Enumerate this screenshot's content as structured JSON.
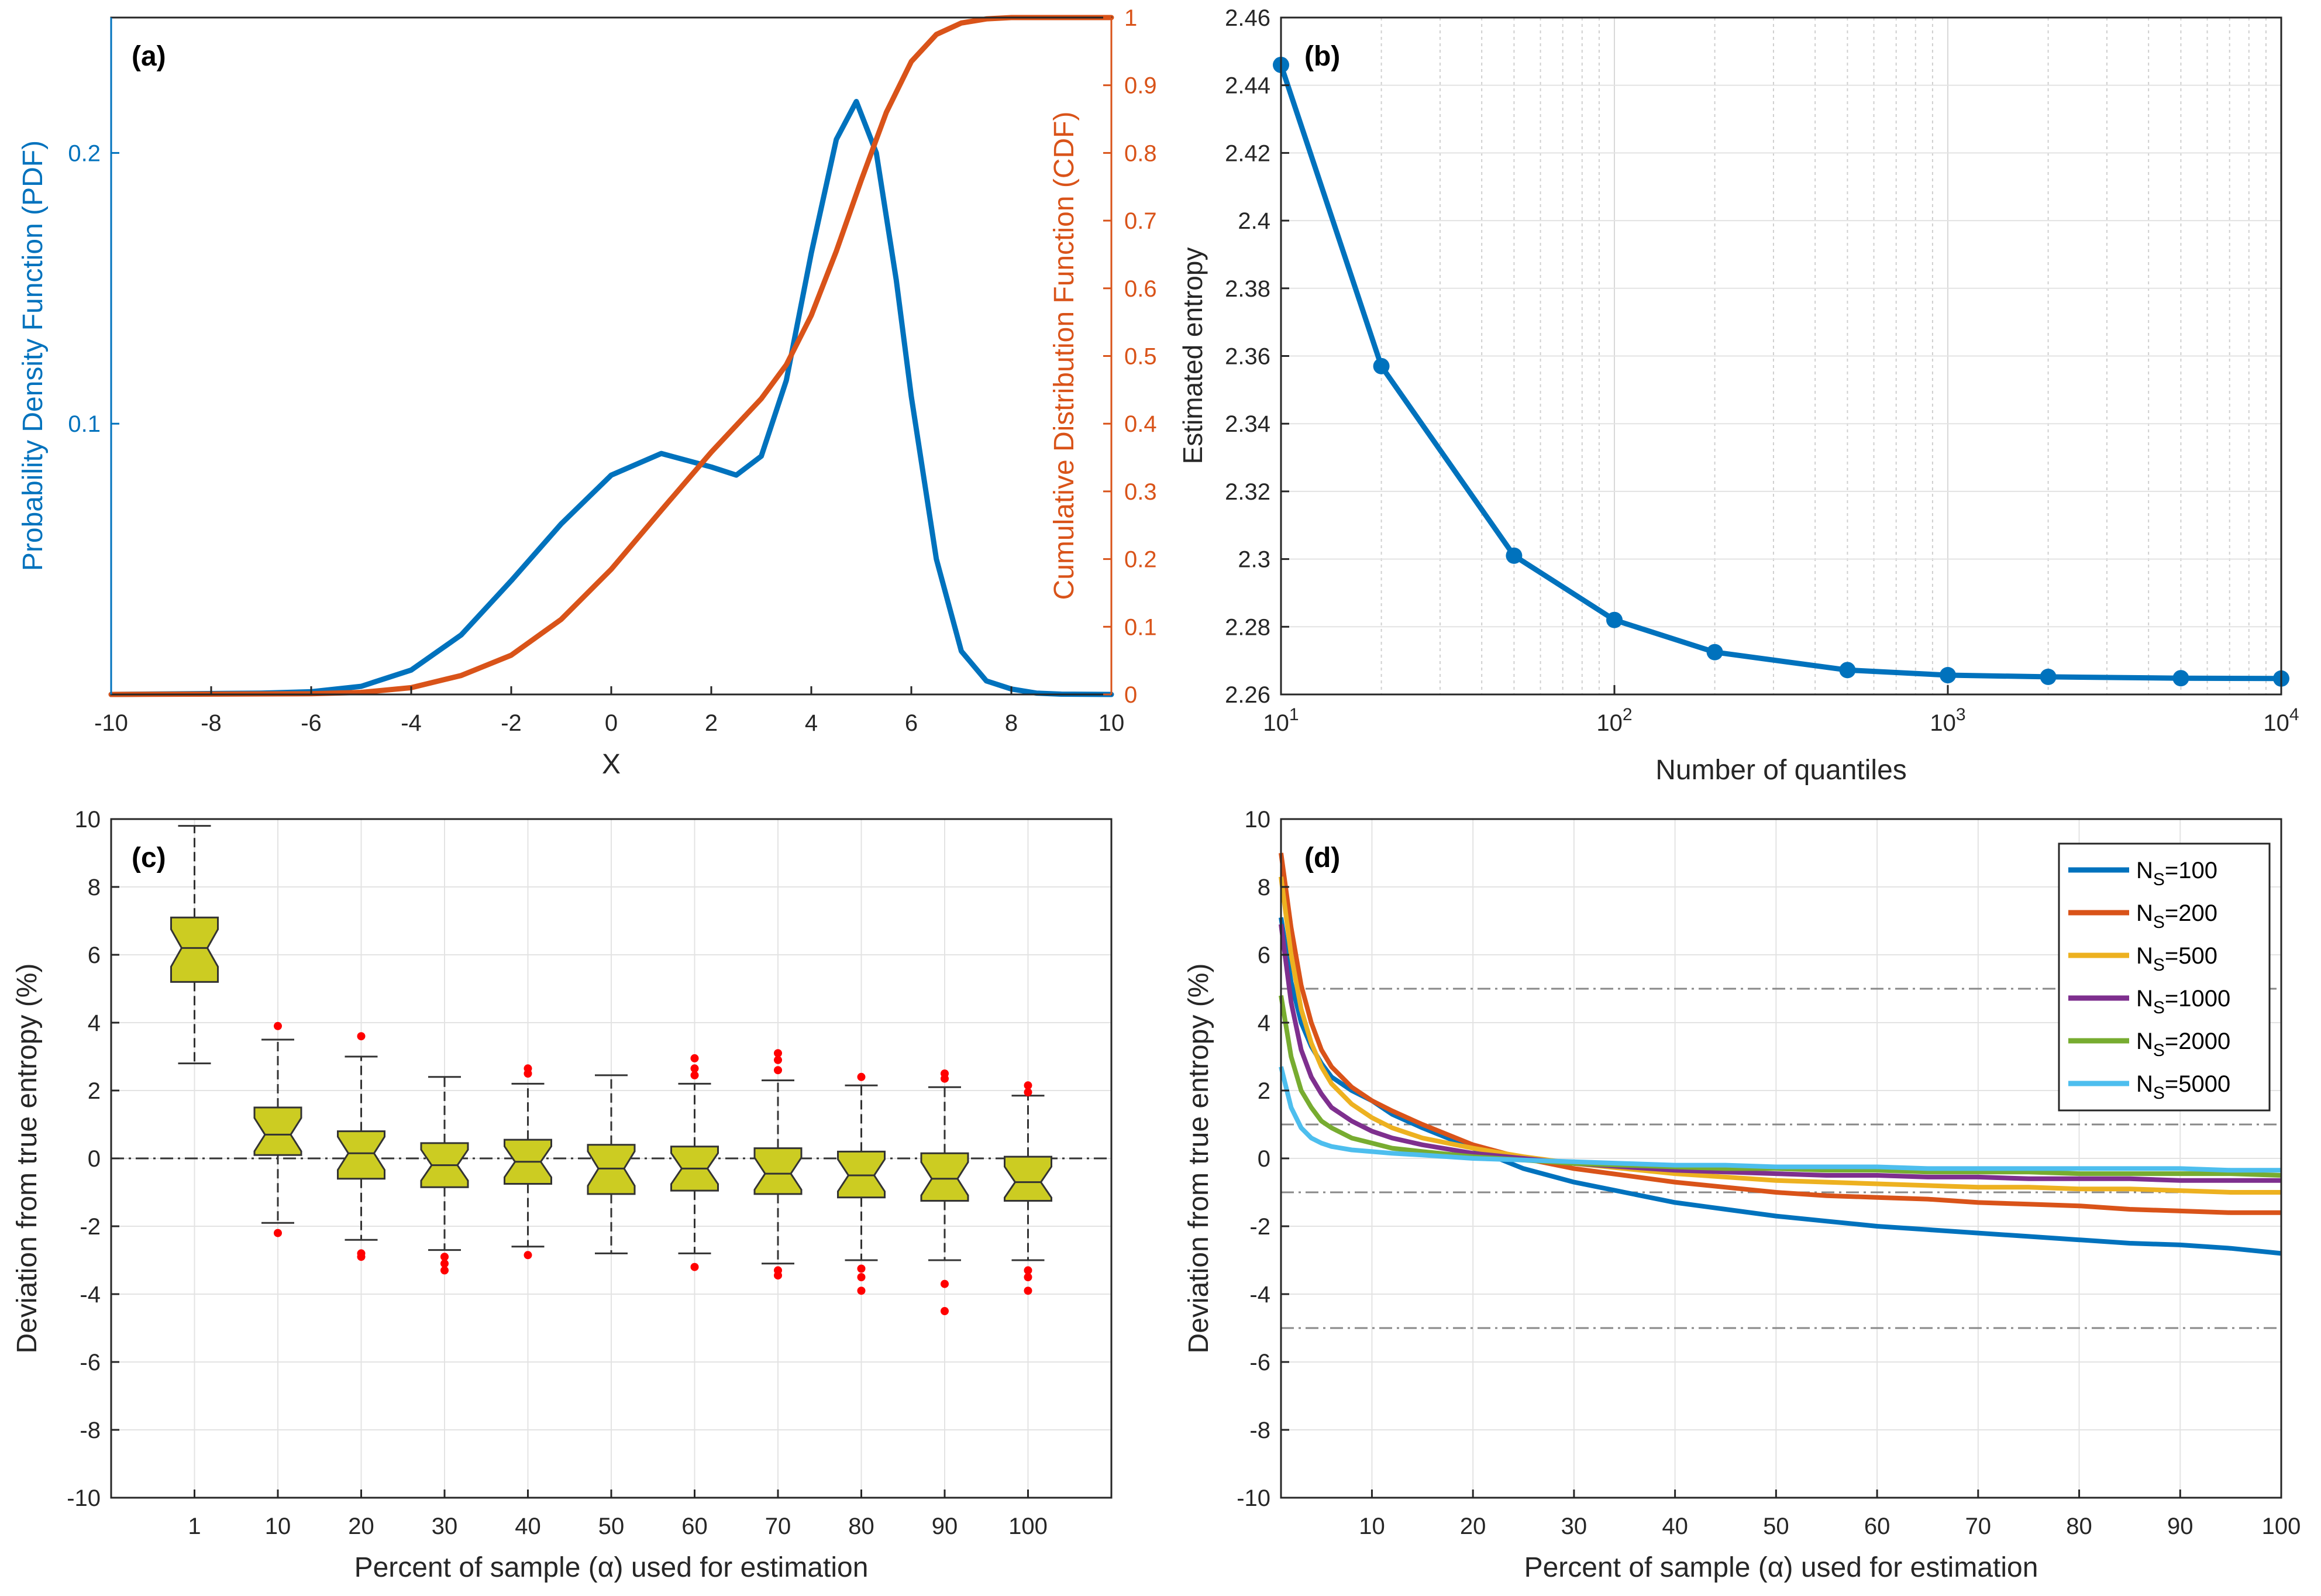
{
  "colors": {
    "pdf": "#0072BD",
    "cdf": "#D95319",
    "line_b": "#0072BD",
    "box_fill": "#CCCC22",
    "outlier": "#FF0000",
    "ref_line": "#888888"
  },
  "chart_data": [
    {
      "panel": "a",
      "type": "line",
      "label": "(a)",
      "xlabel": "X",
      "ylabel_left": "Probability Density Function (PDF)",
      "ylabel_right": "Cumulative Distribution Function (CDF)",
      "xlim": [
        -10,
        10
      ],
      "ylim_left": [
        0,
        0.25
      ],
      "ylim_right": [
        0,
        1
      ],
      "xticks": [
        -10,
        -8,
        -6,
        -4,
        -2,
        0,
        2,
        4,
        6,
        8,
        10
      ],
      "yticks_left": [
        0.1,
        0.2
      ],
      "yticks_right": [
        0,
        0.1,
        0.2,
        0.3,
        0.4,
        0.5,
        0.6,
        0.7,
        0.8,
        0.9,
        1
      ],
      "series": [
        {
          "name": "PDF",
          "axis": "left",
          "x": [
            -10,
            -7,
            -6,
            -5,
            -4,
            -3,
            -2,
            -1,
            0,
            1,
            2,
            2.5,
            3,
            3.5,
            4,
            4.5,
            4.9,
            5.3,
            5.7,
            6,
            6.5,
            7,
            7.5,
            8,
            8.5,
            9,
            10
          ],
          "y": [
            0,
            0.0005,
            0.001,
            0.003,
            0.009,
            0.022,
            0.042,
            0.063,
            0.081,
            0.089,
            0.084,
            0.081,
            0.088,
            0.116,
            0.163,
            0.205,
            0.219,
            0.2,
            0.153,
            0.11,
            0.05,
            0.016,
            0.005,
            0.002,
            0.0005,
            0.0001,
            0
          ]
        },
        {
          "name": "CDF",
          "axis": "right",
          "x": [
            -10,
            -6,
            -5,
            -4,
            -3,
            -2,
            -1,
            0,
            1,
            2,
            3,
            3.5,
            4,
            4.5,
            5,
            5.5,
            6,
            6.5,
            7,
            7.5,
            8,
            10
          ],
          "y": [
            0,
            0.001,
            0.003,
            0.01,
            0.028,
            0.058,
            0.111,
            0.185,
            0.272,
            0.358,
            0.437,
            0.487,
            0.56,
            0.655,
            0.76,
            0.86,
            0.935,
            0.975,
            0.992,
            0.998,
            1.0,
            1.0
          ]
        }
      ]
    },
    {
      "panel": "b",
      "type": "line",
      "label": "(b)",
      "xlabel": "Number of quantiles",
      "ylabel": "Estimated entropy",
      "xscale": "log",
      "xlim": [
        10,
        10000
      ],
      "ylim": [
        2.26,
        2.46
      ],
      "xticks": [
        "10^1",
        "10^2",
        "10^3",
        "10^4"
      ],
      "yticks": [
        2.26,
        2.28,
        2.3,
        2.32,
        2.34,
        2.36,
        2.38,
        2.4,
        2.42,
        2.44,
        2.46
      ],
      "series": [
        {
          "name": "Estimated entropy",
          "x": [
            10,
            20,
            50,
            100,
            200,
            500,
            1000,
            2000,
            5000,
            10000
          ],
          "y": [
            2.446,
            2.357,
            2.301,
            2.282,
            2.2725,
            2.2672,
            2.2657,
            2.2652,
            2.2648,
            2.2647
          ]
        }
      ]
    },
    {
      "panel": "c",
      "type": "box",
      "label": "(c)",
      "xlabel": "Percent of sample (α) used for estimation",
      "ylabel": "Deviation from true entropy (%)",
      "ylim": [
        -10,
        10
      ],
      "yticks": [
        -10,
        -8,
        -6,
        -4,
        -2,
        0,
        2,
        4,
        6,
        8,
        10
      ],
      "categories": [
        "1",
        "10",
        "20",
        "30",
        "40",
        "50",
        "60",
        "70",
        "80",
        "90",
        "100"
      ],
      "boxes": [
        {
          "min": 2.8,
          "q1": 5.2,
          "median": 6.2,
          "q3": 7.1,
          "max": 9.8,
          "outliers": []
        },
        {
          "min": -1.9,
          "q1": 0.1,
          "median": 0.7,
          "q3": 1.5,
          "max": 3.5,
          "outliers": [
            3.9,
            -2.2
          ]
        },
        {
          "min": -2.4,
          "q1": -0.6,
          "median": 0.15,
          "q3": 0.8,
          "max": 3.0,
          "outliers": [
            3.6,
            -2.8,
            -2.9
          ]
        },
        {
          "min": -2.7,
          "q1": -0.85,
          "median": -0.2,
          "q3": 0.45,
          "max": 2.4,
          "outliers": [
            -2.9,
            -3.1,
            -3.3
          ]
        },
        {
          "min": -2.6,
          "q1": -0.75,
          "median": -0.1,
          "q3": 0.55,
          "max": 2.2,
          "outliers": [
            2.5,
            2.65,
            -2.85
          ]
        },
        {
          "min": -2.8,
          "q1": -1.05,
          "median": -0.3,
          "q3": 0.4,
          "max": 2.45,
          "outliers": []
        },
        {
          "min": -2.8,
          "q1": -0.95,
          "median": -0.3,
          "q3": 0.35,
          "max": 2.2,
          "outliers": [
            2.95,
            2.65,
            2.45,
            -3.2
          ]
        },
        {
          "min": -3.1,
          "q1": -1.05,
          "median": -0.45,
          "q3": 0.3,
          "max": 2.3,
          "outliers": [
            3.1,
            2.9,
            2.6,
            -3.3,
            -3.45
          ]
        },
        {
          "min": -3.0,
          "q1": -1.15,
          "median": -0.5,
          "q3": 0.2,
          "max": 2.15,
          "outliers": [
            2.4,
            -3.5,
            -3.9,
            -3.25
          ]
        },
        {
          "min": -3.0,
          "q1": -1.25,
          "median": -0.6,
          "q3": 0.15,
          "max": 2.1,
          "outliers": [
            2.5,
            2.35,
            -3.7,
            -4.5
          ]
        },
        {
          "min": -3.0,
          "q1": -1.25,
          "median": -0.7,
          "q3": 0.05,
          "max": 1.85,
          "outliers": [
            2.15,
            1.95,
            -3.3,
            -3.5,
            -3.9
          ]
        }
      ]
    },
    {
      "panel": "d",
      "type": "line",
      "label": "(d)",
      "xlabel": "Percent of sample (α) used for estimation",
      "ylabel": "Deviation from true entropy (%)",
      "xlim": [
        1,
        100
      ],
      "ylim": [
        -10,
        10
      ],
      "xticks": [
        10,
        20,
        30,
        40,
        50,
        60,
        70,
        80,
        90,
        100
      ],
      "yticks": [
        -10,
        -8,
        -6,
        -4,
        -2,
        0,
        2,
        4,
        6,
        8,
        10
      ],
      "reference_lines": [
        5,
        1,
        -1,
        -5
      ],
      "legend_position": "top-right",
      "series": [
        {
          "name": "NS=100",
          "name_sub": "S",
          "name_value": "=100",
          "color": "#0072BD",
          "x": [
            1,
            2,
            3,
            4,
            5,
            6,
            8,
            10,
            12,
            15,
            20,
            25,
            30,
            35,
            40,
            45,
            50,
            55,
            60,
            65,
            70,
            75,
            80,
            85,
            90,
            95,
            100
          ],
          "y": [
            7.1,
            5.2,
            4.0,
            3.3,
            2.8,
            2.4,
            2.0,
            1.7,
            1.3,
            0.9,
            0.3,
            -0.3,
            -0.7,
            -1.0,
            -1.3,
            -1.5,
            -1.7,
            -1.85,
            -2.0,
            -2.1,
            -2.2,
            -2.3,
            -2.4,
            -2.5,
            -2.55,
            -2.65,
            -2.8
          ]
        },
        {
          "name": "NS=200",
          "name_sub": "S",
          "name_value": "=200",
          "color": "#D95319",
          "x": [
            1,
            2,
            3,
            4,
            5,
            6,
            8,
            10,
            12,
            15,
            20,
            25,
            30,
            35,
            40,
            45,
            50,
            55,
            60,
            65,
            70,
            75,
            80,
            85,
            90,
            95,
            100
          ],
          "y": [
            9.0,
            6.8,
            5.1,
            4.0,
            3.2,
            2.7,
            2.1,
            1.7,
            1.4,
            1.0,
            0.4,
            0.0,
            -0.3,
            -0.5,
            -0.7,
            -0.85,
            -1.0,
            -1.1,
            -1.15,
            -1.2,
            -1.3,
            -1.35,
            -1.4,
            -1.5,
            -1.55,
            -1.6,
            -1.6
          ]
        },
        {
          "name": "NS=500",
          "name_sub": "S",
          "name_value": "=500",
          "color": "#EDB120",
          "x": [
            1,
            2,
            3,
            4,
            5,
            6,
            8,
            10,
            12,
            15,
            20,
            25,
            30,
            35,
            40,
            45,
            50,
            55,
            60,
            65,
            70,
            75,
            80,
            85,
            90,
            95,
            100
          ],
          "y": [
            8.3,
            6.0,
            4.4,
            3.4,
            2.7,
            2.2,
            1.6,
            1.2,
            0.9,
            0.6,
            0.3,
            0.05,
            -0.15,
            -0.3,
            -0.45,
            -0.55,
            -0.65,
            -0.7,
            -0.75,
            -0.8,
            -0.85,
            -0.85,
            -0.9,
            -0.9,
            -0.95,
            -1.0,
            -1.0
          ]
        },
        {
          "name": "NS=1000",
          "name_sub": "S",
          "name_value": "=1000",
          "color": "#7E2F8E",
          "x": [
            1,
            2,
            3,
            4,
            5,
            6,
            8,
            10,
            12,
            15,
            20,
            25,
            30,
            35,
            40,
            45,
            50,
            55,
            60,
            65,
            70,
            75,
            80,
            85,
            90,
            95,
            100
          ],
          "y": [
            6.9,
            4.6,
            3.2,
            2.4,
            1.9,
            1.5,
            1.1,
            0.8,
            0.6,
            0.4,
            0.15,
            0.0,
            -0.15,
            -0.25,
            -0.35,
            -0.4,
            -0.45,
            -0.5,
            -0.5,
            -0.55,
            -0.55,
            -0.6,
            -0.6,
            -0.6,
            -0.65,
            -0.65,
            -0.65
          ]
        },
        {
          "name": "NS=2000",
          "name_sub": "S",
          "name_value": "=2000",
          "color": "#77AC30",
          "x": [
            1,
            2,
            3,
            4,
            5,
            6,
            8,
            10,
            12,
            15,
            20,
            25,
            30,
            35,
            40,
            45,
            50,
            55,
            60,
            65,
            70,
            75,
            80,
            85,
            90,
            95,
            100
          ],
          "y": [
            4.8,
            3.0,
            2.0,
            1.5,
            1.1,
            0.9,
            0.6,
            0.45,
            0.3,
            0.2,
            0.05,
            -0.05,
            -0.15,
            -0.2,
            -0.25,
            -0.3,
            -0.3,
            -0.35,
            -0.35,
            -0.4,
            -0.4,
            -0.4,
            -0.45,
            -0.45,
            -0.45,
            -0.45,
            -0.5
          ]
        },
        {
          "name": "NS=5000",
          "name_sub": "S",
          "name_value": "=5000",
          "color": "#4DBEEE",
          "x": [
            1,
            2,
            3,
            4,
            5,
            6,
            8,
            10,
            12,
            15,
            20,
            25,
            30,
            35,
            40,
            45,
            50,
            55,
            60,
            65,
            70,
            75,
            80,
            85,
            90,
            95,
            100
          ],
          "y": [
            2.7,
            1.5,
            0.9,
            0.6,
            0.45,
            0.35,
            0.25,
            0.2,
            0.15,
            0.1,
            0.0,
            -0.05,
            -0.1,
            -0.15,
            -0.2,
            -0.2,
            -0.25,
            -0.25,
            -0.25,
            -0.3,
            -0.3,
            -0.3,
            -0.3,
            -0.3,
            -0.3,
            -0.35,
            -0.35
          ]
        }
      ]
    }
  ]
}
